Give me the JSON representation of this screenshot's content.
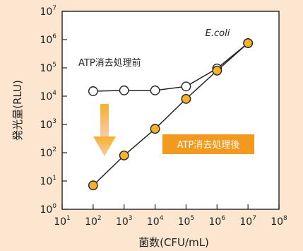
{
  "colors": {
    "background": "#FCE6CF",
    "plot_background": "#FFFFFF",
    "orange_marker": "#F6B12A",
    "orange_badge": "#F39A1E",
    "arrow_top": "#F6B12A",
    "arrow_bottom": "#F7CBA8",
    "line": "#222222"
  },
  "chart_data": {
    "type": "scatter",
    "xscale": "log",
    "yscale": "log",
    "xlim": [
      10,
      100000000
    ],
    "ylim": [
      1,
      10000000
    ],
    "x_ticks": [
      {
        "base": "10",
        "exp": "1"
      },
      {
        "base": "10",
        "exp": "2"
      },
      {
        "base": "10",
        "exp": "3"
      },
      {
        "base": "10",
        "exp": "4"
      },
      {
        "base": "10",
        "exp": "5"
      },
      {
        "base": "10",
        "exp": "6"
      },
      {
        "base": "10",
        "exp": "7"
      },
      {
        "base": "10",
        "exp": "8"
      }
    ],
    "y_ticks": [
      {
        "base": "10",
        "exp": "0"
      },
      {
        "base": "10",
        "exp": "1"
      },
      {
        "base": "10",
        "exp": "2"
      },
      {
        "base": "10",
        "exp": "3"
      },
      {
        "base": "10",
        "exp": "4"
      },
      {
        "base": "10",
        "exp": "5"
      },
      {
        "base": "10",
        "exp": "6"
      },
      {
        "base": "10",
        "exp": "7"
      }
    ],
    "xlabel": "菌数(CFU/mL)",
    "ylabel": "発光量(RLU)",
    "organism_label": "E.coli",
    "grid": false,
    "series": [
      {
        "name": "ATP消去処理前",
        "marker": "open-circle",
        "x": [
          100,
          1000,
          10000,
          100000,
          1000000,
          10000000
        ],
        "y": [
          15000,
          16000,
          16000,
          22000,
          95000,
          750000
        ]
      },
      {
        "name": "ATP消去処理後",
        "marker": "filled-circle",
        "x": [
          100,
          1000,
          10000,
          100000,
          1000000,
          10000000
        ],
        "y": [
          7,
          80,
          700,
          8000,
          80000,
          750000
        ]
      }
    ]
  }
}
